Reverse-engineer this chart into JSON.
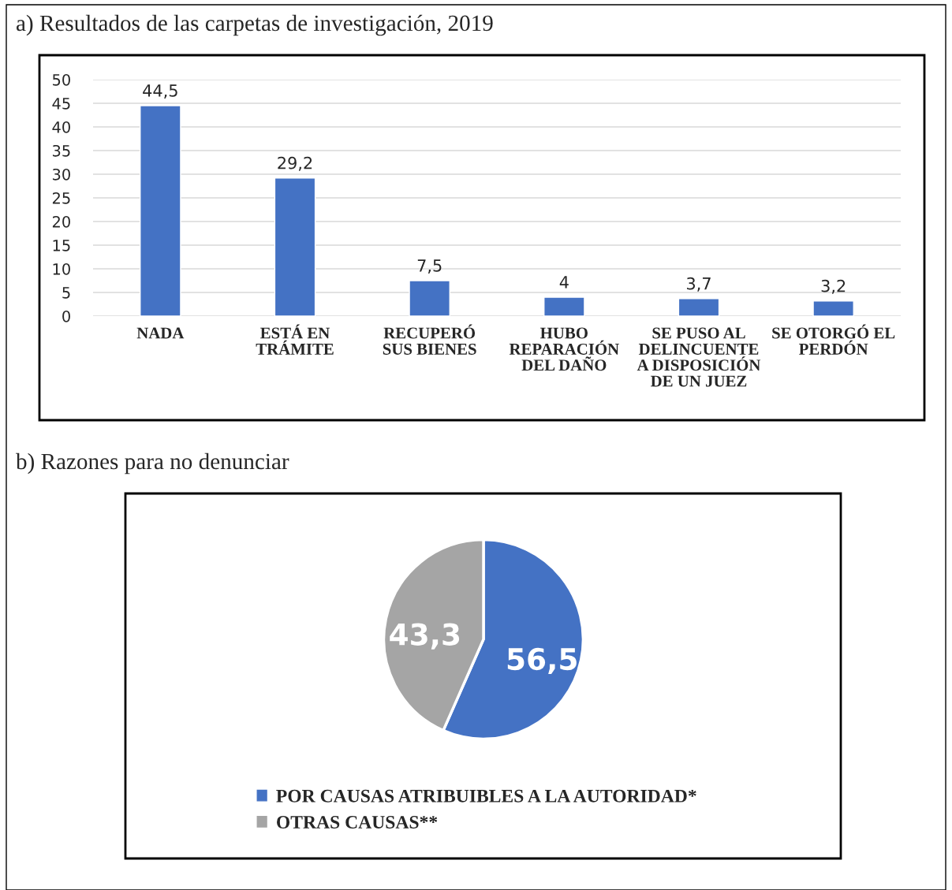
{
  "chart_data": [
    {
      "type": "bar",
      "title": "a) Resultados de las carpetas de investigación, 2019",
      "categories": [
        "NADA",
        "ESTÁ EN\nTRÁMITE",
        "RECUPERÓ\nSUS BIENES",
        "HUBO\nREPARACIÓN\nDEL DAÑO",
        "SE PUSO AL\nDELINCUENTE\nA DISPOSICIÓN\nDE UN JUEZ",
        "SE OTORGÓ EL\nPERDÓN"
      ],
      "values": [
        44.5,
        29.2,
        7.5,
        4,
        3.7,
        3.2
      ],
      "value_labels": [
        "44,5",
        "29,2",
        "7,5",
        "4",
        "3,7",
        "3,2"
      ],
      "color": "#4472c4",
      "ylim": [
        0,
        50
      ],
      "yticks": [
        0,
        5,
        10,
        15,
        20,
        25,
        30,
        35,
        40,
        45,
        50
      ],
      "grid": "y"
    },
    {
      "type": "pie",
      "title": "b) Razones para no denunciar",
      "categories": [
        "POR CAUSAS ATRIBUIBLES A LA AUTORIDAD*",
        "OTRAS CAUSAS**"
      ],
      "values": [
        56.5,
        43.3
      ],
      "value_labels": [
        "56,5",
        "43,3"
      ],
      "colors": [
        "#4472c4",
        "#a5a5a5"
      ],
      "legend": "bottom"
    }
  ]
}
